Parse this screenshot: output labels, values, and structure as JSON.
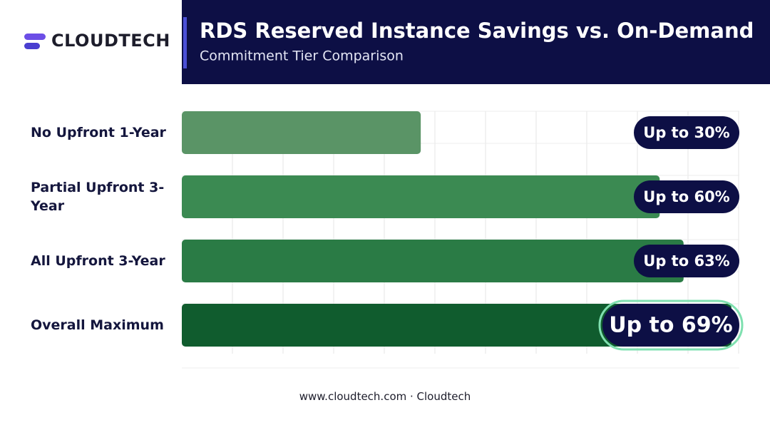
{
  "brand": "CLOUDTECH",
  "chart_data": {
    "type": "bar",
    "orientation": "horizontal",
    "title": "RDS Reserved Instance Savings vs. On-Demand",
    "subtitle": "Commitment Tier Comparison",
    "categories": [
      "No Upfront 1-Year",
      "Partial Upfront 3-Year",
      "All Upfront 3-Year",
      "Overall Maximum"
    ],
    "values": [
      30,
      60,
      63,
      69
    ],
    "value_labels": [
      "Up to 30%",
      "Up to 60%",
      "Up to 63%",
      "Up to 69%"
    ],
    "colors": [
      "#5a9466",
      "#3b8a52",
      "#2a7b45",
      "#105c2e"
    ],
    "xlim": [
      0,
      70
    ],
    "grid": true
  },
  "footer": "www.cloudtech.com · Cloudtech"
}
